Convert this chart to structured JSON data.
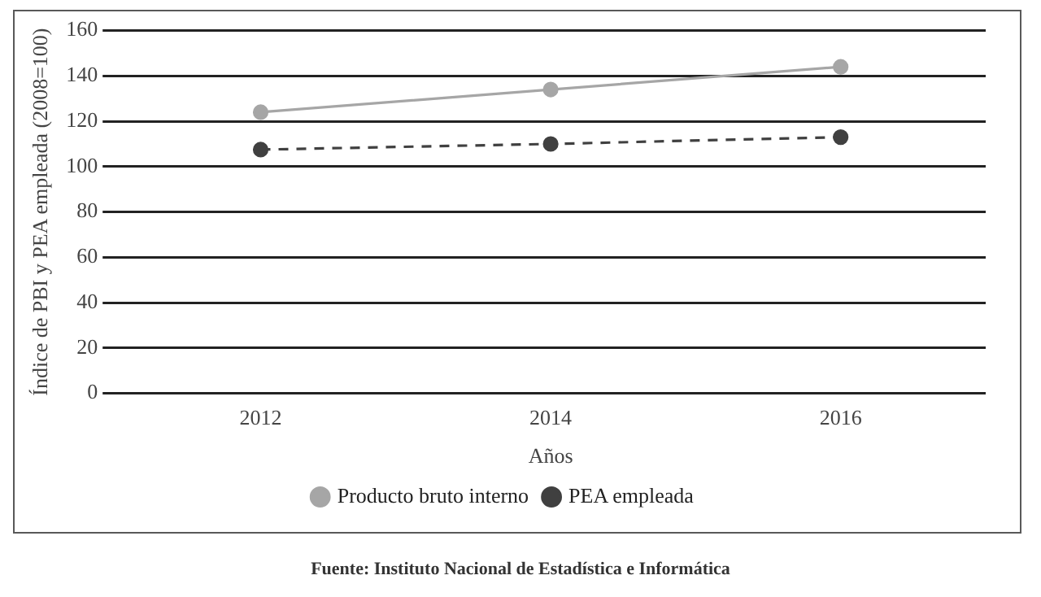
{
  "chart_data": {
    "type": "line",
    "xlabel": "Años",
    "ylabel": "Índice de PBI y PEA empleada (2008=100)",
    "categories": [
      "2012",
      "2014",
      "2016"
    ],
    "series": [
      {
        "name": "Producto bruto interno",
        "color": "#a6a6a6",
        "values": [
          124,
          134,
          144
        ],
        "line_style": "solid"
      },
      {
        "name": "PEA empleada",
        "color": "#404040",
        "values": [
          107.5,
          110,
          113
        ],
        "line_style": "dashed"
      }
    ],
    "ylim": [
      0,
      160
    ],
    "yticks": [
      0,
      20,
      40,
      60,
      80,
      100,
      120,
      140,
      160
    ],
    "grid": "y",
    "legend": "bottom",
    "marker": "circle",
    "annotations": [
      "Fuente: Instituto Nacional de Estadística e Informática"
    ]
  }
}
